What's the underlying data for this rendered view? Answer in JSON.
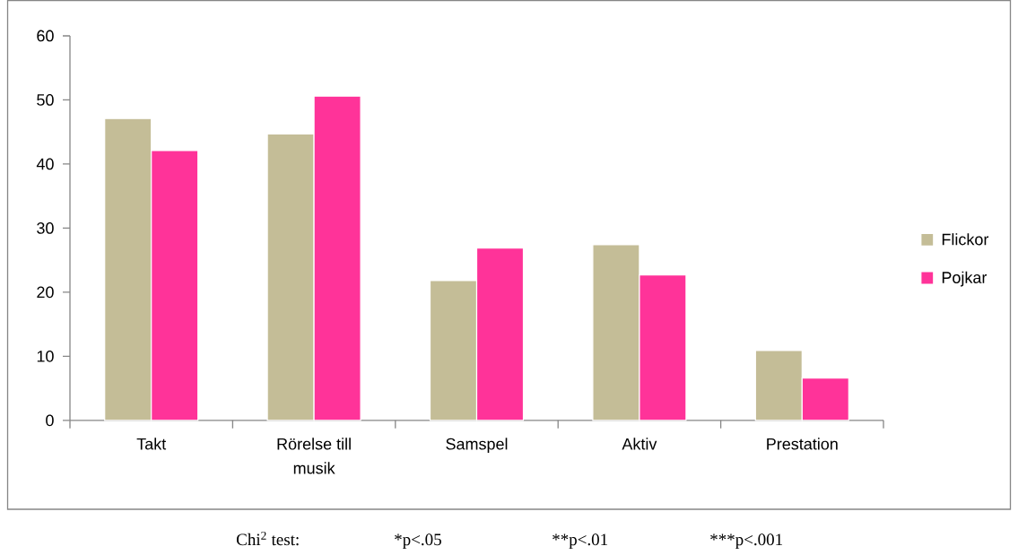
{
  "chart_data": {
    "type": "bar",
    "categories": [
      "Takt",
      "Rörelse till musik",
      "Samspel",
      "Aktiv",
      "Prestation"
    ],
    "series": [
      {
        "name": "Flickor",
        "color": "#c4bd97",
        "values": [
          47.1,
          44.7,
          21.8,
          27.4,
          10.9
        ]
      },
      {
        "name": "Pojkar",
        "color": "#ff3399",
        "values": [
          42.1,
          50.6,
          26.9,
          22.7,
          6.6
        ]
      }
    ],
    "ylim": [
      0,
      60
    ],
    "yticks": [
      0,
      10,
      20,
      30,
      40,
      50,
      60
    ],
    "legend": "right",
    "annotations": [
      "Chi$^{2}$ test:",
      "*p<.05",
      "**p<.01",
      "***p<.001"
    ]
  }
}
